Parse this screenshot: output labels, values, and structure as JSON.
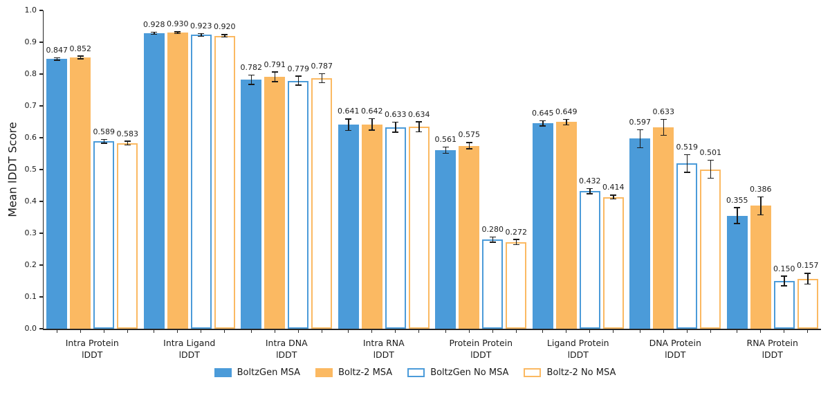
{
  "chart_data": {
    "type": "bar",
    "title": "",
    "xlabel": "",
    "ylabel": "Mean lDDT Score",
    "ylim": [
      0.0,
      1.0
    ],
    "ytick_labels": [
      "0.0",
      "0.1",
      "0.2",
      "0.3",
      "0.4",
      "0.5",
      "0.6",
      "0.7",
      "0.8",
      "0.9",
      "1.0"
    ],
    "grid": false,
    "legend_position": "bottom",
    "value_label_decimals": 3,
    "categories": [
      {
        "line1": "Intra Protein",
        "line2": "lDDT"
      },
      {
        "line1": "Intra Ligand",
        "line2": "lDDT"
      },
      {
        "line1": "Intra DNA",
        "line2": "lDDT"
      },
      {
        "line1": "Intra RNA",
        "line2": "lDDT"
      },
      {
        "line1": "Protein Protein",
        "line2": "lDDT"
      },
      {
        "line1": "Ligand Protein",
        "line2": "lDDT"
      },
      {
        "line1": "DNA Protein",
        "line2": "lDDT"
      },
      {
        "line1": "RNA Protein",
        "line2": "lDDT"
      }
    ],
    "series": [
      {
        "name": "BoltzGen MSA",
        "style": "solid",
        "color": "#4B9BD9",
        "values": [
          0.847,
          0.928,
          0.782,
          0.641,
          0.561,
          0.645,
          0.597,
          0.355
        ],
        "errors": [
          0.004,
          0.003,
          0.015,
          0.018,
          0.01,
          0.008,
          0.028,
          0.025
        ]
      },
      {
        "name": "Boltz-2 MSA",
        "style": "solid",
        "color": "#FBB962",
        "values": [
          0.852,
          0.93,
          0.791,
          0.642,
          0.575,
          0.649,
          0.633,
          0.386
        ],
        "errors": [
          0.004,
          0.003,
          0.015,
          0.018,
          0.01,
          0.009,
          0.025,
          0.028
        ]
      },
      {
        "name": "BoltzGen No MSA",
        "style": "outline",
        "color": "#4B9BD9",
        "values": [
          0.589,
          0.923,
          0.779,
          0.633,
          0.28,
          0.432,
          0.519,
          0.15
        ],
        "errors": [
          0.006,
          0.004,
          0.014,
          0.016,
          0.008,
          0.008,
          0.028,
          0.015
        ]
      },
      {
        "name": "Boltz-2 No MSA",
        "style": "outline",
        "color": "#FBB962",
        "values": [
          0.583,
          0.92,
          0.787,
          0.634,
          0.272,
          0.414,
          0.501,
          0.157
        ],
        "errors": [
          0.006,
          0.004,
          0.014,
          0.016,
          0.008,
          0.006,
          0.028,
          0.017
        ]
      }
    ],
    "error_bar_color": "#1a1a1a",
    "axis_color": "#262626",
    "text_color": "#1a1a1a",
    "background_color": "#ffffff"
  }
}
